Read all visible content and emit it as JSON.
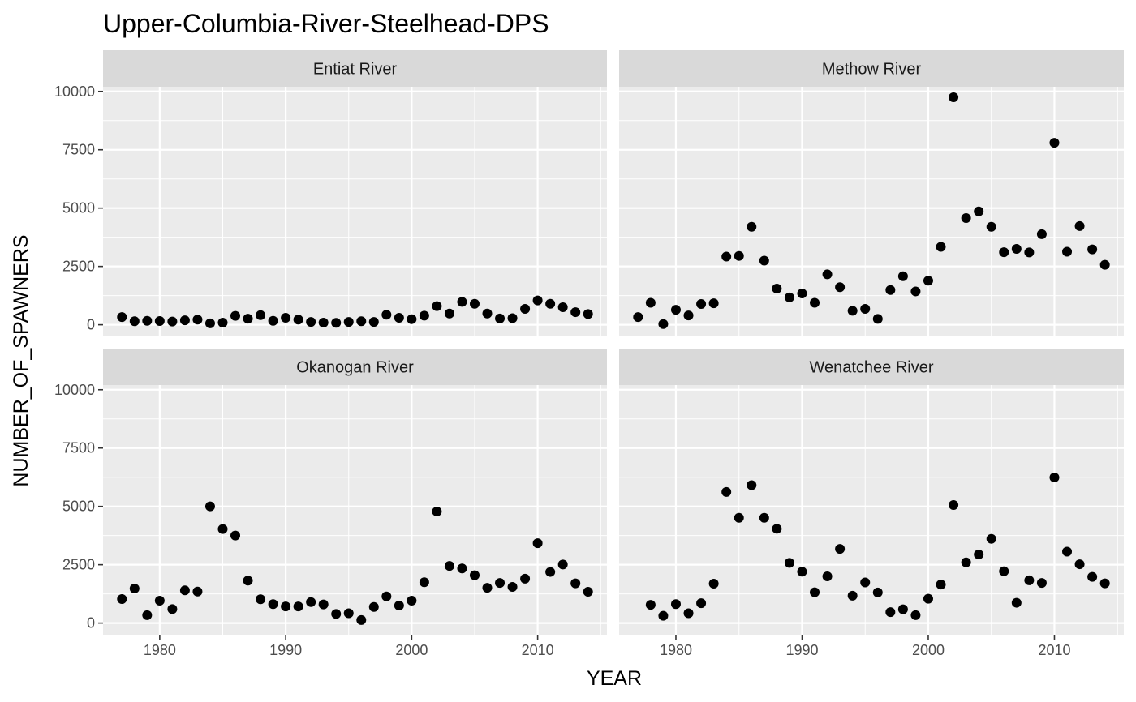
{
  "chart_data": {
    "type": "scatter",
    "title": "Upper-Columbia-River-Steelhead-DPS",
    "xlabel": "YEAR",
    "ylabel": "NUMBER_OF_SPAWNERS",
    "xlim": [
      1975.5,
      2015.5
    ],
    "ylim": [
      -500,
      10200
    ],
    "x_ticks": [
      1980,
      1990,
      2000,
      2010
    ],
    "y_ticks": [
      0,
      2500,
      5000,
      7500,
      10000
    ],
    "grid": true,
    "point_color": "#000000",
    "panel_background": "#ebebeb",
    "strip_background": "#d9d9d9",
    "facets": [
      {
        "name": "Entiat River",
        "points": [
          [
            1977,
            330
          ],
          [
            1978,
            150
          ],
          [
            1979,
            170
          ],
          [
            1980,
            160
          ],
          [
            1981,
            140
          ],
          [
            1982,
            190
          ],
          [
            1983,
            220
          ],
          [
            1984,
            60
          ],
          [
            1985,
            90
          ],
          [
            1986,
            380
          ],
          [
            1987,
            260
          ],
          [
            1988,
            410
          ],
          [
            1989,
            170
          ],
          [
            1990,
            300
          ],
          [
            1991,
            220
          ],
          [
            1992,
            120
          ],
          [
            1993,
            90
          ],
          [
            1994,
            80
          ],
          [
            1995,
            120
          ],
          [
            1996,
            150
          ],
          [
            1997,
            120
          ],
          [
            1998,
            430
          ],
          [
            1999,
            300
          ],
          [
            2000,
            240
          ],
          [
            2001,
            390
          ],
          [
            2002,
            800
          ],
          [
            2003,
            480
          ],
          [
            2004,
            980
          ],
          [
            2005,
            900
          ],
          [
            2006,
            480
          ],
          [
            2007,
            270
          ],
          [
            2008,
            280
          ],
          [
            2009,
            680
          ],
          [
            2010,
            1040
          ],
          [
            2011,
            900
          ],
          [
            2012,
            750
          ],
          [
            2013,
            540
          ],
          [
            2014,
            460
          ]
        ]
      },
      {
        "name": "Methow River",
        "points": [
          [
            1977,
            330
          ],
          [
            1978,
            940
          ],
          [
            1979,
            30
          ],
          [
            1980,
            640
          ],
          [
            1981,
            400
          ],
          [
            1982,
            890
          ],
          [
            1983,
            920
          ],
          [
            1984,
            2920
          ],
          [
            1985,
            2950
          ],
          [
            1986,
            4200
          ],
          [
            1987,
            2750
          ],
          [
            1988,
            1550
          ],
          [
            1989,
            1170
          ],
          [
            1990,
            1340
          ],
          [
            1991,
            940
          ],
          [
            1992,
            2160
          ],
          [
            1993,
            1610
          ],
          [
            1994,
            600
          ],
          [
            1995,
            680
          ],
          [
            1996,
            250
          ],
          [
            1997,
            1490
          ],
          [
            1998,
            2080
          ],
          [
            1999,
            1430
          ],
          [
            2000,
            1890
          ],
          [
            2001,
            3340
          ],
          [
            2002,
            9750
          ],
          [
            2003,
            4570
          ],
          [
            2004,
            4860
          ],
          [
            2005,
            4200
          ],
          [
            2006,
            3110
          ],
          [
            2007,
            3250
          ],
          [
            2008,
            3100
          ],
          [
            2009,
            3880
          ],
          [
            2010,
            7800
          ],
          [
            2011,
            3130
          ],
          [
            2012,
            4230
          ],
          [
            2013,
            3230
          ],
          [
            2014,
            2570
          ]
        ]
      },
      {
        "name": "Okanogan River",
        "points": [
          [
            1977,
            1030
          ],
          [
            1978,
            1480
          ],
          [
            1979,
            340
          ],
          [
            1980,
            960
          ],
          [
            1981,
            600
          ],
          [
            1982,
            1400
          ],
          [
            1983,
            1350
          ],
          [
            1984,
            5000
          ],
          [
            1985,
            4030
          ],
          [
            1986,
            3750
          ],
          [
            1987,
            1820
          ],
          [
            1988,
            1020
          ],
          [
            1989,
            810
          ],
          [
            1990,
            710
          ],
          [
            1991,
            710
          ],
          [
            1992,
            900
          ],
          [
            1993,
            800
          ],
          [
            1994,
            390
          ],
          [
            1995,
            420
          ],
          [
            1996,
            130
          ],
          [
            1997,
            690
          ],
          [
            1998,
            1140
          ],
          [
            1999,
            750
          ],
          [
            2000,
            960
          ],
          [
            2001,
            1750
          ],
          [
            2002,
            4780
          ],
          [
            2003,
            2450
          ],
          [
            2004,
            2340
          ],
          [
            2005,
            2050
          ],
          [
            2006,
            1510
          ],
          [
            2007,
            1720
          ],
          [
            2008,
            1550
          ],
          [
            2009,
            1900
          ],
          [
            2010,
            3420
          ],
          [
            2011,
            2190
          ],
          [
            2012,
            2510
          ],
          [
            2013,
            1700
          ],
          [
            2014,
            1340
          ]
        ]
      },
      {
        "name": "Wenatchee River",
        "points": [
          [
            1978,
            780
          ],
          [
            1979,
            310
          ],
          [
            1980,
            810
          ],
          [
            1981,
            420
          ],
          [
            1982,
            850
          ],
          [
            1983,
            1690
          ],
          [
            1984,
            5620
          ],
          [
            1985,
            4510
          ],
          [
            1986,
            5910
          ],
          [
            1987,
            4510
          ],
          [
            1988,
            4040
          ],
          [
            1989,
            2580
          ],
          [
            1990,
            2200
          ],
          [
            1991,
            1320
          ],
          [
            1992,
            2000
          ],
          [
            1993,
            3180
          ],
          [
            1994,
            1170
          ],
          [
            1995,
            1740
          ],
          [
            1996,
            1310
          ],
          [
            1997,
            470
          ],
          [
            1998,
            590
          ],
          [
            1999,
            340
          ],
          [
            2000,
            1040
          ],
          [
            2001,
            1650
          ],
          [
            2002,
            5060
          ],
          [
            2003,
            2600
          ],
          [
            2004,
            2940
          ],
          [
            2005,
            3610
          ],
          [
            2006,
            2220
          ],
          [
            2007,
            870
          ],
          [
            2008,
            1830
          ],
          [
            2009,
            1720
          ],
          [
            2010,
            6240
          ],
          [
            2011,
            3060
          ],
          [
            2012,
            2520
          ],
          [
            2013,
            1980
          ],
          [
            2014,
            1700
          ]
        ]
      }
    ]
  }
}
